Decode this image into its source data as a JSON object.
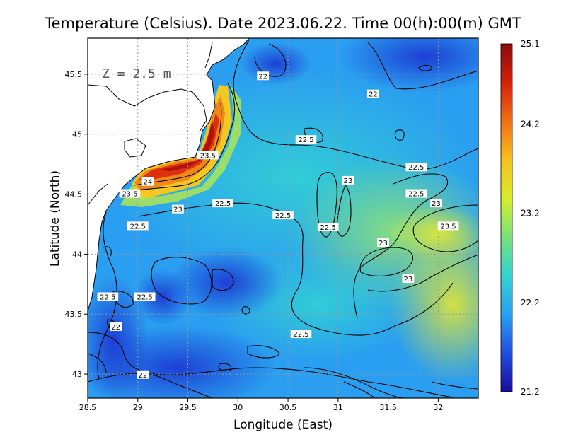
{
  "title": "Temperature (Celsius). Date 2023.06.22. Time 00(h):00(m) GMT",
  "depth_label": "Z = 2.5 m",
  "x_axis": {
    "label": "Longitude (East)",
    "range": [
      28.5,
      32.4
    ],
    "ticks": [
      "28.5",
      "29",
      "29.5",
      "30",
      "30.5",
      "31",
      "31.5",
      "32"
    ]
  },
  "y_axis": {
    "label": "Latitude (North)",
    "range": [
      42.8,
      45.8
    ],
    "ticks": [
      "43",
      "43.5",
      "44",
      "44.5",
      "45",
      "45.5"
    ]
  },
  "colorbar": {
    "min": 21.2,
    "max": 25.1,
    "ticks": [
      "25.1",
      "24.2",
      "23.2",
      "22.2",
      "21.2"
    ],
    "colors": [
      "#1a0b9c",
      "#1f4fe0",
      "#2aa0f0",
      "#34d2d2",
      "#78e27a",
      "#d8ec2c",
      "#f6c11e",
      "#f07016",
      "#d4200c",
      "#8a0a0a"
    ]
  },
  "contour_labels": [
    {
      "text": "22",
      "lon": 30.25,
      "lat": 45.48
    },
    {
      "text": "22",
      "lon": 31.35,
      "lat": 45.33
    },
    {
      "text": "22.5",
      "lon": 30.68,
      "lat": 44.95
    },
    {
      "text": "23.5",
      "lon": 29.7,
      "lat": 44.82
    },
    {
      "text": "22.5",
      "lon": 31.78,
      "lat": 44.72
    },
    {
      "text": "24",
      "lon": 29.1,
      "lat": 44.6
    },
    {
      "text": "23",
      "lon": 31.1,
      "lat": 44.61
    },
    {
      "text": "22.5",
      "lon": 31.78,
      "lat": 44.5
    },
    {
      "text": "23.5",
      "lon": 28.92,
      "lat": 44.5
    },
    {
      "text": "22.5",
      "lon": 29.85,
      "lat": 44.42
    },
    {
      "text": "23",
      "lon": 29.4,
      "lat": 44.37
    },
    {
      "text": "23",
      "lon": 31.98,
      "lat": 44.42
    },
    {
      "text": "22.5",
      "lon": 30.45,
      "lat": 44.32
    },
    {
      "text": "22.5",
      "lon": 29.0,
      "lat": 44.23
    },
    {
      "text": "22.5",
      "lon": 30.9,
      "lat": 44.22
    },
    {
      "text": "23.5",
      "lon": 32.1,
      "lat": 44.23
    },
    {
      "text": "23",
      "lon": 31.45,
      "lat": 44.09
    },
    {
      "text": "23",
      "lon": 31.7,
      "lat": 43.79
    },
    {
      "text": "22.5",
      "lon": 28.7,
      "lat": 43.64
    },
    {
      "text": "22.5",
      "lon": 29.07,
      "lat": 43.64
    },
    {
      "text": "22.5",
      "lon": 30.63,
      "lat": 43.33
    },
    {
      "text": "22",
      "lon": 28.78,
      "lat": 43.39
    },
    {
      "text": "22",
      "lon": 29.05,
      "lat": 42.99
    }
  ]
}
